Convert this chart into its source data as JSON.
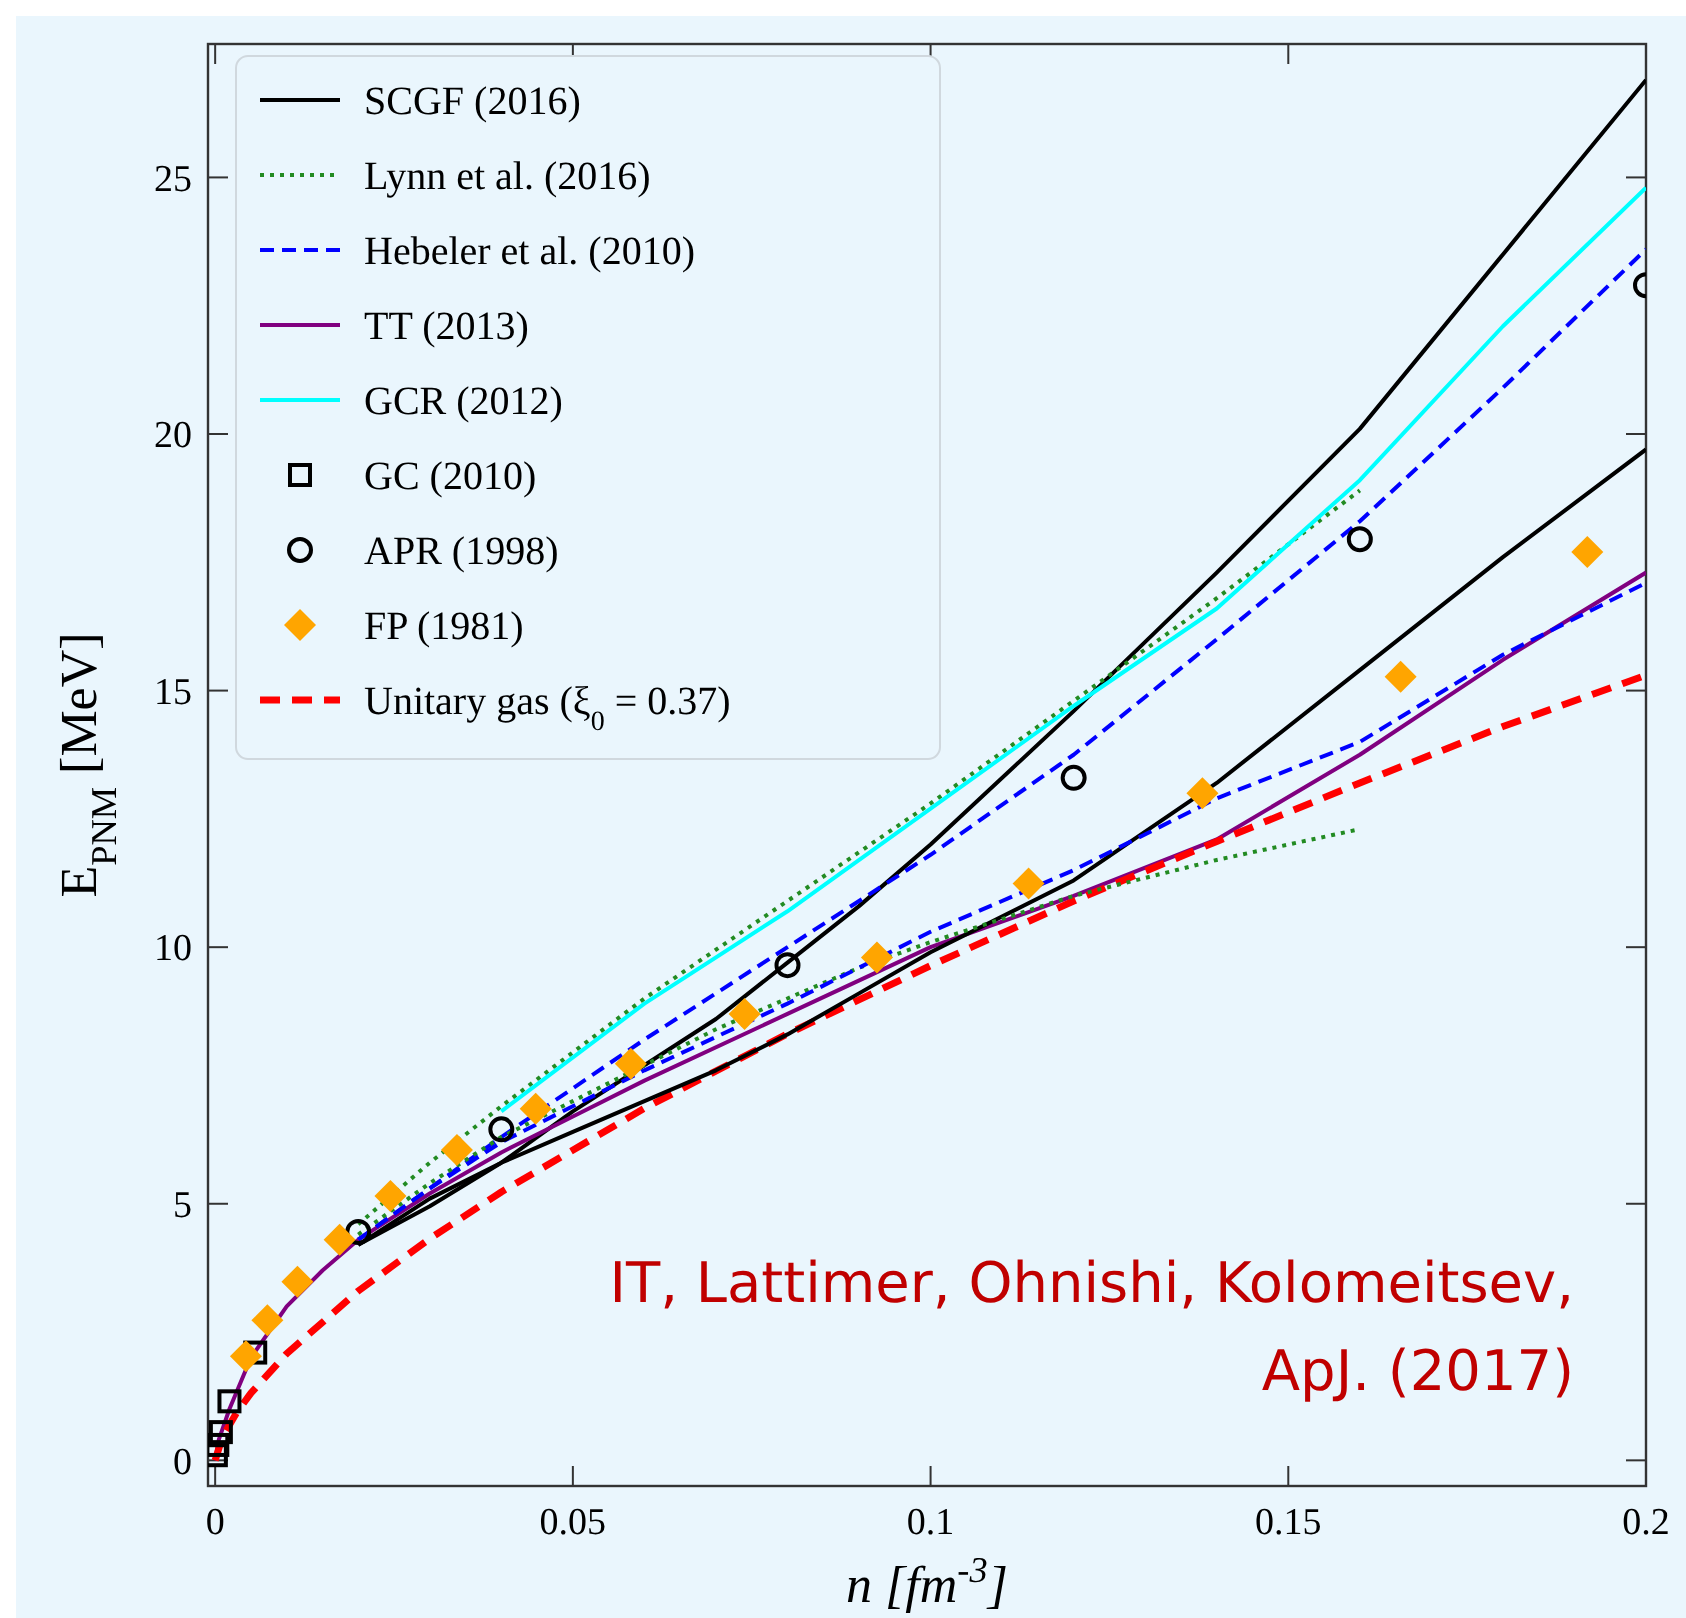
{
  "chart_data": {
    "type": "line",
    "xlabel": "n  [fm$^{-3}$]",
    "ylabel": "E$_{PNM}$ [MeV]",
    "xlim": [
      -0.001,
      0.2
    ],
    "ylim": [
      -0.5,
      27.6
    ],
    "xticks": [
      0,
      0.05,
      0.1,
      0.15,
      0.2
    ],
    "yticks": [
      0,
      5,
      10,
      15,
      20,
      25
    ],
    "grid": false,
    "legend": "top left",
    "annotations": [
      "IT, Lattimer, Ohnishi, Kolomeitsev,",
      "ApJ. (2017)"
    ],
    "series": [
      {
        "name": "SCGF (2016)",
        "color": "#000000",
        "line_style": "solid",
        "marker": "none",
        "x": [
          0.02,
          0.03,
          0.04,
          0.05,
          0.06,
          0.07,
          0.08,
          0.09,
          0.1,
          0.12,
          0.14,
          0.16,
          0.18,
          0.2
        ],
        "values": [
          4.2,
          4.95,
          5.8,
          6.8,
          7.7,
          8.6,
          9.7,
          10.8,
          12.0,
          14.6,
          17.3,
          20.1,
          23.5,
          26.9
        ]
      },
      {
        "name": "Lynn et al. (2016)",
        "color": "#228b22",
        "line_style": "dotted",
        "marker": "none",
        "x": [
          0.02,
          0.03,
          0.04,
          0.06,
          0.08,
          0.1,
          0.12,
          0.14,
          0.16
        ],
        "values": [
          4.6,
          5.8,
          6.9,
          9.0,
          10.9,
          12.8,
          14.8,
          16.8,
          18.9
        ]
      },
      {
        "name": "Hebeler et al. (2010)",
        "color": "#0000ff",
        "line_style": "dashed",
        "marker": "none",
        "x": [
          0.02,
          0.03,
          0.04,
          0.06,
          0.08,
          0.1,
          0.12,
          0.14,
          0.16,
          0.18,
          0.2
        ],
        "values": [
          4.3,
          5.3,
          6.3,
          8.2,
          10.0,
          11.8,
          13.75,
          16.0,
          18.3,
          20.9,
          23.6
        ]
      },
      {
        "name": "TT (2013)",
        "color": "#800080",
        "line_style": "solid",
        "marker": "none",
        "x": [
          0,
          0.0005,
          0.002,
          0.005,
          0.01,
          0.015,
          0.02,
          0.03,
          0.04,
          0.05,
          0.06,
          0.08,
          0.1,
          0.12,
          0.14,
          0.16,
          0.18,
          0.2
        ],
        "values": [
          0,
          0.4,
          1.0,
          2.0,
          3.0,
          3.7,
          4.3,
          5.2,
          6.0,
          6.7,
          7.4,
          8.7,
          10.0,
          11.0,
          12.1,
          13.75,
          15.6,
          17.3
        ]
      },
      {
        "name": "GCR (2012)",
        "color": "#00ffff",
        "line_style": "solid",
        "marker": "none",
        "x": [
          0.04,
          0.06,
          0.08,
          0.1,
          0.12,
          0.14,
          0.16,
          0.18,
          0.2
        ],
        "values": [
          6.8,
          8.9,
          10.7,
          12.7,
          14.7,
          16.6,
          19.1,
          22.1,
          24.8
        ]
      },
      {
        "name": "GC (2010)",
        "type": "scatter",
        "color": "#000000",
        "marker": "square",
        "x": [
          0.0001,
          0.0003,
          0.0008,
          0.002,
          0.0056
        ],
        "values": [
          0.1,
          0.3,
          0.55,
          1.15,
          2.1
        ]
      },
      {
        "name": "APR (1998)",
        "type": "scatter",
        "color": "#000000",
        "marker": "circle",
        "x": [
          0.02,
          0.04,
          0.08,
          0.12,
          0.16,
          0.2
        ],
        "values": [
          4.45,
          6.45,
          9.65,
          13.3,
          17.95,
          22.9
        ]
      },
      {
        "name": "FP (1981)",
        "type": "scatter",
        "color": "#ffa500",
        "marker": "diamond",
        "x": [
          0.0043,
          0.0073,
          0.0115,
          0.0174,
          0.0245,
          0.0338,
          0.0448,
          0.0581,
          0.074,
          0.0925,
          0.1137,
          0.138,
          0.1657,
          0.1918
        ],
        "values": [
          2.03,
          2.73,
          3.48,
          4.3,
          5.15,
          6.05,
          6.85,
          7.73,
          8.7,
          9.8,
          11.24,
          13.0,
          15.27,
          17.7
        ]
      },
      {
        "name": "Unitary gas (ξ$_{0}$ = 0.37)",
        "color": "#ff0000",
        "line_style": "dashed",
        "marker": "none",
        "x": [
          0,
          0.001,
          0.003,
          0.005,
          0.01,
          0.02,
          0.03,
          0.04,
          0.06,
          0.08,
          0.1,
          0.12,
          0.14,
          0.16,
          0.18,
          0.2
        ],
        "values": [
          0,
          0.45,
          0.93,
          1.31,
          2.08,
          3.3,
          4.32,
          5.23,
          6.86,
          8.31,
          9.64,
          10.9,
          12.06,
          13.2,
          14.3,
          15.3
        ]
      },
      {
        "color": "#000000",
        "line_style": "solid",
        "marker": "none",
        "x": [
          0.02,
          0.03,
          0.04,
          0.05,
          0.06,
          0.07,
          0.08,
          0.09,
          0.1,
          0.12,
          0.14,
          0.16,
          0.18,
          0.2
        ],
        "values": [
          4.2,
          5.1,
          5.8,
          6.4,
          7.0,
          7.6,
          8.3,
          9.1,
          9.9,
          11.3,
          13.2,
          15.4,
          17.6,
          19.7
        ]
      },
      {
        "color": "#228b22",
        "line_style": "dotted",
        "marker": "none",
        "x": [
          0.02,
          0.03,
          0.04,
          0.05,
          0.06,
          0.07,
          0.08,
          0.09,
          0.1,
          0.12,
          0.14,
          0.16
        ],
        "values": [
          4.4,
          5.4,
          6.3,
          7.0,
          7.7,
          8.4,
          9.0,
          9.6,
          10.1,
          11.0,
          11.7,
          12.3
        ]
      },
      {
        "color": "#0000ff",
        "line_style": "dashed",
        "marker": "none",
        "x": [
          0.02,
          0.03,
          0.04,
          0.06,
          0.08,
          0.1,
          0.12,
          0.14,
          0.16,
          0.18,
          0.2
        ],
        "values": [
          4.3,
          5.3,
          6.2,
          7.6,
          8.9,
          10.3,
          11.5,
          12.9,
          14.0,
          15.7,
          17.1
        ]
      }
    ]
  }
}
